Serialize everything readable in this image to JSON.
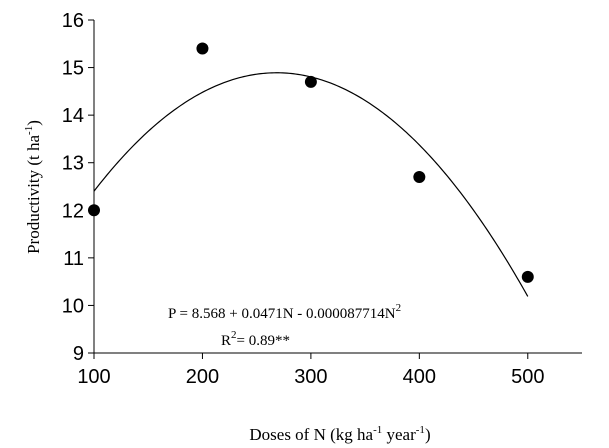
{
  "chart_data": {
    "type": "scatter",
    "title": "",
    "xlabel": {
      "prefix": "Doses of  N (kg ha",
      "sup1": "-1",
      "middle": " year",
      "sup2": "-1",
      "suffix": ")"
    },
    "ylabel": {
      "prefix": "Productivity  (t ha",
      "sup": "-1",
      "suffix": ")"
    },
    "xlim": [
      100,
      550
    ],
    "ylim": [
      9,
      16
    ],
    "xticks": [
      100,
      200,
      300,
      400,
      500
    ],
    "yticks": [
      9,
      10,
      11,
      12,
      13,
      14,
      15,
      16
    ],
    "x": [
      100,
      200,
      300,
      400,
      500
    ],
    "y": [
      12.0,
      15.4,
      14.7,
      12.7,
      10.6
    ],
    "fit": {
      "type": "quadratic",
      "intercept": 8.568,
      "linear": 0.0471,
      "quadratic": -8.7714e-05,
      "x_range": [
        100,
        500
      ]
    },
    "equation": {
      "text": "P = 8.568 + 0.0471N - 0.000087714N",
      "sup": "2"
    },
    "r_squared": {
      "prefix": "R",
      "sup": "2",
      "suffix": "= 0.89**"
    },
    "grid": false,
    "legend": "none",
    "colors": {
      "points": "#000000",
      "curve": "#000000",
      "axes": "#000000"
    }
  }
}
